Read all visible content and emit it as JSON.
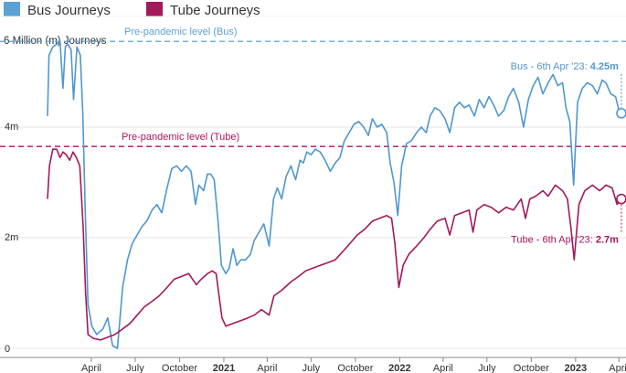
{
  "chart_data": {
    "type": "line",
    "ylabel": "6 Million (m) Journeys",
    "ylim": [
      0,
      6
    ],
    "y_tick_labels": [
      "0",
      "2m",
      "4m"
    ],
    "y_ticks": [
      0,
      2,
      4
    ],
    "x_ticks": [
      {
        "label": "April",
        "date": "2020-04-01",
        "bold": false
      },
      {
        "label": "July",
        "date": "2020-07-01",
        "bold": false
      },
      {
        "label": "October",
        "date": "2020-10-01",
        "bold": false
      },
      {
        "label": "2021",
        "date": "2021-01-01",
        "bold": true
      },
      {
        "label": "April",
        "date": "2021-04-01",
        "bold": false
      },
      {
        "label": "July",
        "date": "2021-07-01",
        "bold": false
      },
      {
        "label": "October",
        "date": "2021-10-01",
        "bold": false
      },
      {
        "label": "2022",
        "date": "2022-01-01",
        "bold": true
      },
      {
        "label": "April",
        "date": "2022-04-01",
        "bold": false
      },
      {
        "label": "July",
        "date": "2022-07-01",
        "bold": false
      },
      {
        "label": "October",
        "date": "2022-10-01",
        "bold": false
      },
      {
        "label": "2023",
        "date": "2023-01-01",
        "bold": true
      },
      {
        "label": "April",
        "date": "2023-04-01",
        "bold": false
      }
    ],
    "x_range": [
      "2020-01-01",
      "2023-04-08"
    ],
    "legend": {
      "placement": "top-left"
    },
    "reference_lines": [
      {
        "label": "Pre-pandemic level (Bus)",
        "value": 5.55,
        "color": "#5aa2d6"
      },
      {
        "label": "Pre-pandemic level (Tube)",
        "value": 3.65,
        "color": "#b0125b"
      }
    ],
    "annotations": [
      {
        "series": "Bus Journeys",
        "date": "2023-04-06",
        "value": 4.25,
        "prefix": "Bus - 6th Apr '23: ",
        "value_label": "4.25m"
      },
      {
        "series": "Tube - 6th Apr '23",
        "series_ref": "Tube Journeys",
        "date": "2023-04-06",
        "value": 2.7,
        "prefix": "Tube - 6th Apr '23: ",
        "value_label": "2.7m"
      }
    ],
    "series": [
      {
        "name": "Bus Journeys",
        "color": "#4f97cf",
        "points": [
          [
            "2020-01-01",
            4.2
          ],
          [
            "2020-01-04",
            5.3
          ],
          [
            "2020-01-12",
            5.45
          ],
          [
            "2020-01-20",
            5.5
          ],
          [
            "2020-01-27",
            5.55
          ],
          [
            "2020-02-02",
            4.7
          ],
          [
            "2020-02-07",
            5.45
          ],
          [
            "2020-02-12",
            5.5
          ],
          [
            "2020-02-19",
            5.4
          ],
          [
            "2020-02-24",
            4.5
          ],
          [
            "2020-03-02",
            5.45
          ],
          [
            "2020-03-09",
            5.3
          ],
          [
            "2020-03-14",
            4.3
          ],
          [
            "2020-03-19",
            2.6
          ],
          [
            "2020-03-25",
            0.8
          ],
          [
            "2020-04-02",
            0.4
          ],
          [
            "2020-04-12",
            0.25
          ],
          [
            "2020-04-25",
            0.35
          ],
          [
            "2020-05-05",
            0.55
          ],
          [
            "2020-05-15",
            0.05
          ],
          [
            "2020-05-25",
            0.0
          ],
          [
            "2020-06-05",
            1.1
          ],
          [
            "2020-06-15",
            1.6
          ],
          [
            "2020-06-25",
            1.9
          ],
          [
            "2020-07-05",
            2.05
          ],
          [
            "2020-07-15",
            2.2
          ],
          [
            "2020-07-25",
            2.3
          ],
          [
            "2020-08-05",
            2.5
          ],
          [
            "2020-08-15",
            2.6
          ],
          [
            "2020-08-25",
            2.45
          ],
          [
            "2020-09-05",
            2.9
          ],
          [
            "2020-09-15",
            3.25
          ],
          [
            "2020-09-25",
            3.3
          ],
          [
            "2020-10-05",
            3.2
          ],
          [
            "2020-10-15",
            3.3
          ],
          [
            "2020-10-25",
            3.2
          ],
          [
            "2020-11-03",
            2.6
          ],
          [
            "2020-11-10",
            2.95
          ],
          [
            "2020-11-20",
            2.85
          ],
          [
            "2020-11-28",
            3.15
          ],
          [
            "2020-12-05",
            3.15
          ],
          [
            "2020-12-12",
            3.05
          ],
          [
            "2020-12-20",
            2.3
          ],
          [
            "2020-12-27",
            1.5
          ],
          [
            "2021-01-05",
            1.35
          ],
          [
            "2021-01-12",
            1.45
          ],
          [
            "2021-01-20",
            1.8
          ],
          [
            "2021-01-28",
            1.5
          ],
          [
            "2021-02-05",
            1.6
          ],
          [
            "2021-02-15",
            1.6
          ],
          [
            "2021-02-25",
            1.7
          ],
          [
            "2021-03-05",
            1.95
          ],
          [
            "2021-03-15",
            2.1
          ],
          [
            "2021-03-25",
            2.25
          ],
          [
            "2021-04-05",
            1.85
          ],
          [
            "2021-04-14",
            2.7
          ],
          [
            "2021-04-22",
            2.9
          ],
          [
            "2021-05-01",
            2.7
          ],
          [
            "2021-05-10",
            3.1
          ],
          [
            "2021-05-20",
            3.3
          ],
          [
            "2021-05-30",
            3.05
          ],
          [
            "2021-06-08",
            3.4
          ],
          [
            "2021-06-15",
            3.35
          ],
          [
            "2021-06-22",
            3.55
          ],
          [
            "2021-07-01",
            3.5
          ],
          [
            "2021-07-10",
            3.6
          ],
          [
            "2021-07-20",
            3.55
          ],
          [
            "2021-07-30",
            3.4
          ],
          [
            "2021-08-10",
            3.2
          ],
          [
            "2021-08-20",
            3.35
          ],
          [
            "2021-08-30",
            3.45
          ],
          [
            "2021-09-08",
            3.75
          ],
          [
            "2021-09-18",
            3.9
          ],
          [
            "2021-09-28",
            4.05
          ],
          [
            "2021-10-08",
            4.1
          ],
          [
            "2021-10-18",
            4.0
          ],
          [
            "2021-10-28",
            3.85
          ],
          [
            "2021-11-05",
            4.15
          ],
          [
            "2021-11-15",
            4.0
          ],
          [
            "2021-11-25",
            4.05
          ],
          [
            "2021-12-05",
            3.9
          ],
          [
            "2021-12-12",
            3.35
          ],
          [
            "2021-12-20",
            3.0
          ],
          [
            "2021-12-28",
            2.4
          ],
          [
            "2022-01-05",
            3.3
          ],
          [
            "2022-01-15",
            3.7
          ],
          [
            "2022-01-25",
            3.75
          ],
          [
            "2022-02-05",
            3.9
          ],
          [
            "2022-02-15",
            4.0
          ],
          [
            "2022-02-25",
            3.9
          ],
          [
            "2022-03-05",
            4.2
          ],
          [
            "2022-03-15",
            4.35
          ],
          [
            "2022-03-25",
            4.3
          ],
          [
            "2022-04-05",
            4.15
          ],
          [
            "2022-04-15",
            3.9
          ],
          [
            "2022-04-25",
            4.35
          ],
          [
            "2022-05-05",
            4.45
          ],
          [
            "2022-05-15",
            4.35
          ],
          [
            "2022-05-25",
            4.4
          ],
          [
            "2022-06-05",
            4.2
          ],
          [
            "2022-06-15",
            4.5
          ],
          [
            "2022-06-25",
            4.35
          ],
          [
            "2022-07-05",
            4.55
          ],
          [
            "2022-07-15",
            4.4
          ],
          [
            "2022-07-25",
            4.2
          ],
          [
            "2022-08-05",
            4.3
          ],
          [
            "2022-08-15",
            4.55
          ],
          [
            "2022-08-25",
            4.7
          ],
          [
            "2022-09-05",
            4.45
          ],
          [
            "2022-09-15",
            4.0
          ],
          [
            "2022-09-25",
            4.5
          ],
          [
            "2022-10-05",
            4.75
          ],
          [
            "2022-10-15",
            4.9
          ],
          [
            "2022-10-25",
            4.6
          ],
          [
            "2022-11-05",
            4.8
          ],
          [
            "2022-11-15",
            4.95
          ],
          [
            "2022-11-25",
            4.75
          ],
          [
            "2022-12-05",
            4.8
          ],
          [
            "2022-12-12",
            4.35
          ],
          [
            "2022-12-20",
            4.1
          ],
          [
            "2022-12-28",
            2.95
          ],
          [
            "2023-01-05",
            4.45
          ],
          [
            "2023-01-15",
            4.7
          ],
          [
            "2023-01-25",
            4.8
          ],
          [
            "2023-02-05",
            4.75
          ],
          [
            "2023-02-15",
            4.6
          ],
          [
            "2023-02-25",
            4.85
          ],
          [
            "2023-03-05",
            4.8
          ],
          [
            "2023-03-15",
            4.6
          ],
          [
            "2023-03-25",
            4.55
          ],
          [
            "2023-04-01",
            4.3
          ],
          [
            "2023-04-06",
            4.25
          ]
        ]
      },
      {
        "name": "Tube Journeys",
        "color": "#a3195b",
        "points": [
          [
            "2020-01-01",
            2.7
          ],
          [
            "2020-01-05",
            3.3
          ],
          [
            "2020-01-12",
            3.6
          ],
          [
            "2020-01-20",
            3.6
          ],
          [
            "2020-01-27",
            3.45
          ],
          [
            "2020-02-02",
            3.55
          ],
          [
            "2020-02-09",
            3.5
          ],
          [
            "2020-02-16",
            3.4
          ],
          [
            "2020-02-23",
            3.55
          ],
          [
            "2020-03-01",
            3.45
          ],
          [
            "2020-03-08",
            3.3
          ],
          [
            "2020-03-15",
            2.2
          ],
          [
            "2020-03-20",
            1.0
          ],
          [
            "2020-03-25",
            0.25
          ],
          [
            "2020-04-05",
            0.18
          ],
          [
            "2020-04-20",
            0.15
          ],
          [
            "2020-05-05",
            0.2
          ],
          [
            "2020-05-20",
            0.25
          ],
          [
            "2020-06-05",
            0.35
          ],
          [
            "2020-06-20",
            0.45
          ],
          [
            "2020-07-05",
            0.6
          ],
          [
            "2020-07-20",
            0.75
          ],
          [
            "2020-08-05",
            0.85
          ],
          [
            "2020-08-20",
            0.95
          ],
          [
            "2020-09-05",
            1.1
          ],
          [
            "2020-09-20",
            1.25
          ],
          [
            "2020-10-05",
            1.3
          ],
          [
            "2020-10-20",
            1.35
          ],
          [
            "2020-11-05",
            1.15
          ],
          [
            "2020-11-15",
            1.25
          ],
          [
            "2020-11-28",
            1.35
          ],
          [
            "2020-12-08",
            1.4
          ],
          [
            "2020-12-16",
            1.35
          ],
          [
            "2020-12-22",
            0.95
          ],
          [
            "2020-12-28",
            0.55
          ],
          [
            "2021-01-05",
            0.4
          ],
          [
            "2021-01-20",
            0.45
          ],
          [
            "2021-02-05",
            0.5
          ],
          [
            "2021-02-20",
            0.55
          ],
          [
            "2021-03-05",
            0.6
          ],
          [
            "2021-03-20",
            0.7
          ],
          [
            "2021-04-05",
            0.6
          ],
          [
            "2021-04-15",
            0.95
          ],
          [
            "2021-05-01",
            1.05
          ],
          [
            "2021-05-20",
            1.2
          ],
          [
            "2021-06-05",
            1.3
          ],
          [
            "2021-06-20",
            1.4
          ],
          [
            "2021-07-05",
            1.45
          ],
          [
            "2021-07-20",
            1.5
          ],
          [
            "2021-08-05",
            1.55
          ],
          [
            "2021-08-20",
            1.6
          ],
          [
            "2021-09-05",
            1.75
          ],
          [
            "2021-09-20",
            1.9
          ],
          [
            "2021-10-05",
            2.05
          ],
          [
            "2021-10-20",
            2.15
          ],
          [
            "2021-11-05",
            2.3
          ],
          [
            "2021-11-20",
            2.35
          ],
          [
            "2021-12-05",
            2.4
          ],
          [
            "2021-12-15",
            2.35
          ],
          [
            "2021-12-22",
            1.9
          ],
          [
            "2021-12-30",
            1.1
          ],
          [
            "2022-01-08",
            1.5
          ],
          [
            "2022-01-20",
            1.7
          ],
          [
            "2022-02-05",
            1.85
          ],
          [
            "2022-02-20",
            2.0
          ],
          [
            "2022-03-05",
            2.15
          ],
          [
            "2022-03-20",
            2.3
          ],
          [
            "2022-04-05",
            2.35
          ],
          [
            "2022-04-15",
            2.05
          ],
          [
            "2022-04-25",
            2.4
          ],
          [
            "2022-05-10",
            2.45
          ],
          [
            "2022-05-25",
            2.5
          ],
          [
            "2022-06-02",
            2.1
          ],
          [
            "2022-06-10",
            2.5
          ],
          [
            "2022-06-25",
            2.6
          ],
          [
            "2022-07-10",
            2.55
          ],
          [
            "2022-07-25",
            2.45
          ],
          [
            "2022-08-10",
            2.55
          ],
          [
            "2022-08-25",
            2.5
          ],
          [
            "2022-09-10",
            2.7
          ],
          [
            "2022-09-19",
            2.35
          ],
          [
            "2022-09-28",
            2.7
          ],
          [
            "2022-10-10",
            2.75
          ],
          [
            "2022-10-25",
            2.85
          ],
          [
            "2022-11-05",
            2.75
          ],
          [
            "2022-11-20",
            2.95
          ],
          [
            "2022-12-05",
            2.85
          ],
          [
            "2022-12-15",
            2.7
          ],
          [
            "2022-12-22",
            2.2
          ],
          [
            "2022-12-29",
            1.6
          ],
          [
            "2023-01-08",
            2.6
          ],
          [
            "2023-01-20",
            2.85
          ],
          [
            "2023-02-05",
            2.95
          ],
          [
            "2023-02-20",
            2.85
          ],
          [
            "2023-03-05",
            2.95
          ],
          [
            "2023-03-18",
            2.9
          ],
          [
            "2023-03-28",
            2.6
          ],
          [
            "2023-04-06",
            2.7
          ]
        ]
      }
    ]
  }
}
